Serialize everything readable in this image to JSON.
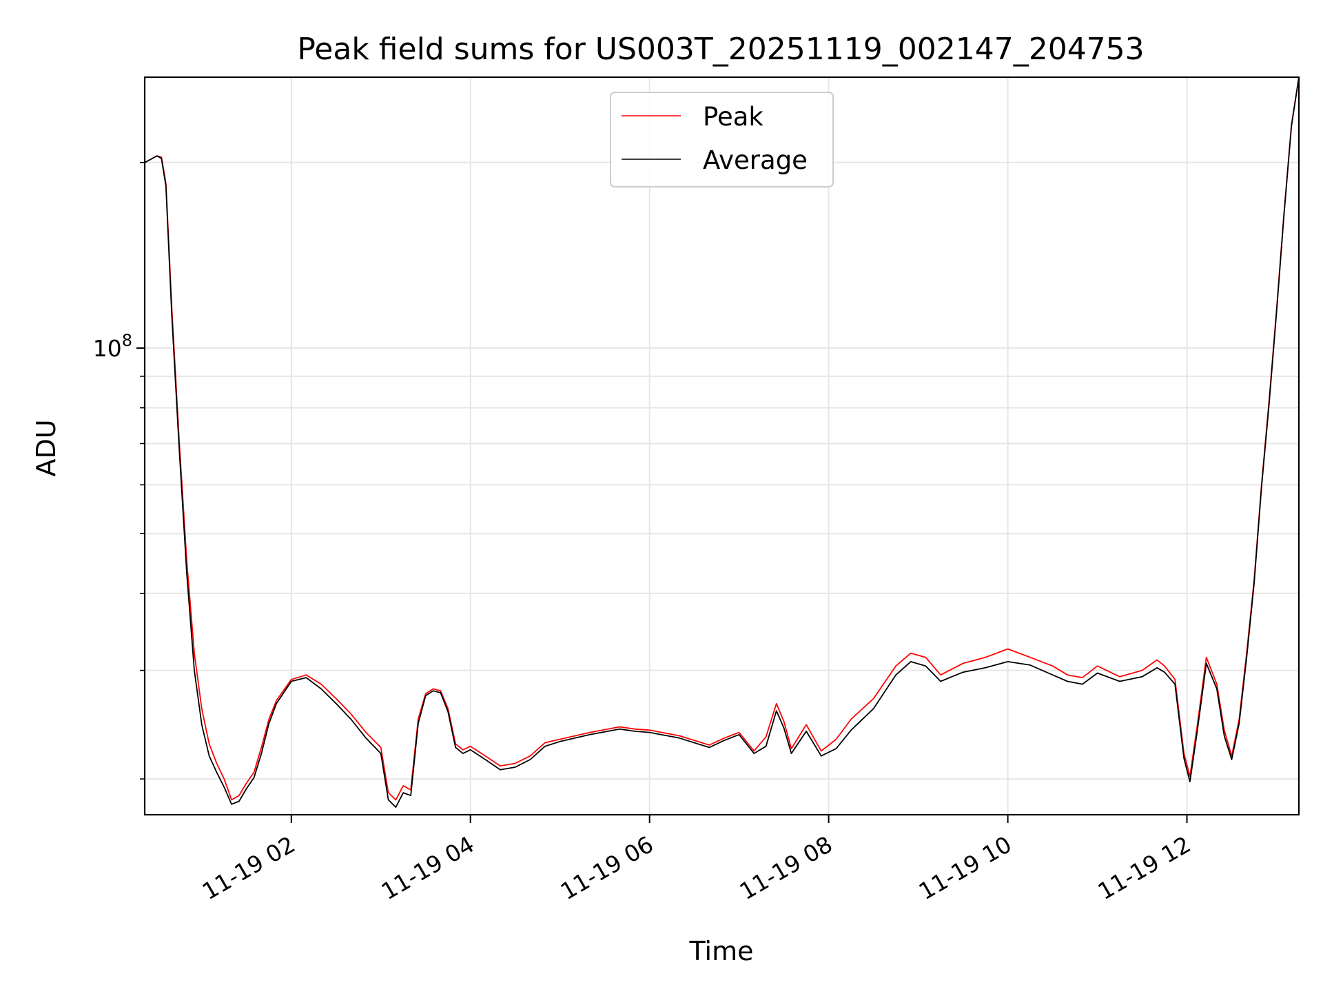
{
  "chart_data": {
    "type": "line",
    "title": "Peak field sums for US003T_20251119_002147_204753",
    "xlabel": "Time",
    "ylabel": "ADU",
    "yscale": "log",
    "grid": true,
    "legend_position": "upper center",
    "xlim": [
      "2025-11-19 00:21:47",
      "2025-11-19 13:15:00"
    ],
    "ylim": [
      17500000,
      275000000
    ],
    "x_tick_labels": [
      "11-19 02",
      "11-19 04",
      "11-19 06",
      "11-19 08",
      "11-19 10",
      "11-19 12"
    ],
    "x_tick_values": [
      "2025-11-19 02:00",
      "2025-11-19 04:00",
      "2025-11-19 06:00",
      "2025-11-19 08:00",
      "2025-11-19 10:00",
      "2025-11-19 12:00"
    ],
    "y_tick_labels": [
      {
        "base": "10",
        "exp": "8",
        "value": 100000000
      }
    ],
    "colors": {
      "Peak": "#ff0000",
      "Average": "#000000"
    },
    "x": [
      "2025-11-19 00:22",
      "2025-11-19 00:30",
      "2025-11-19 00:33",
      "2025-11-19 00:36",
      "2025-11-19 00:40",
      "2025-11-19 00:45",
      "2025-11-19 00:50",
      "2025-11-19 00:55",
      "2025-11-19 01:00",
      "2025-11-19 01:05",
      "2025-11-19 01:10",
      "2025-11-19 01:15",
      "2025-11-19 01:20",
      "2025-11-19 01:25",
      "2025-11-19 01:30",
      "2025-11-19 01:35",
      "2025-11-19 01:40",
      "2025-11-19 01:45",
      "2025-11-19 01:50",
      "2025-11-19 02:00",
      "2025-11-19 02:10",
      "2025-11-19 02:20",
      "2025-11-19 02:30",
      "2025-11-19 02:40",
      "2025-11-19 02:50",
      "2025-11-19 03:00",
      "2025-11-19 03:05",
      "2025-11-19 03:10",
      "2025-11-19 03:15",
      "2025-11-19 03:20",
      "2025-11-19 03:25",
      "2025-11-19 03:30",
      "2025-11-19 03:35",
      "2025-11-19 03:40",
      "2025-11-19 03:45",
      "2025-11-19 03:50",
      "2025-11-19 03:55",
      "2025-11-19 04:00",
      "2025-11-19 04:10",
      "2025-11-19 04:20",
      "2025-11-19 04:30",
      "2025-11-19 04:40",
      "2025-11-19 04:50",
      "2025-11-19 05:00",
      "2025-11-19 05:20",
      "2025-11-19 05:40",
      "2025-11-19 05:50",
      "2025-11-19 06:00",
      "2025-11-19 06:20",
      "2025-11-19 06:40",
      "2025-11-19 06:50",
      "2025-11-19 07:00",
      "2025-11-19 07:10",
      "2025-11-19 07:18",
      "2025-11-19 07:25",
      "2025-11-19 07:30",
      "2025-11-19 07:35",
      "2025-11-19 07:45",
      "2025-11-19 07:55",
      "2025-11-19 08:05",
      "2025-11-19 08:15",
      "2025-11-19 08:30",
      "2025-11-19 08:45",
      "2025-11-19 08:55",
      "2025-11-19 09:05",
      "2025-11-19 09:15",
      "2025-11-19 09:30",
      "2025-11-19 09:45",
      "2025-11-19 10:00",
      "2025-11-19 10:15",
      "2025-11-19 10:30",
      "2025-11-19 10:40",
      "2025-11-19 10:50",
      "2025-11-19 11:00",
      "2025-11-19 11:15",
      "2025-11-19 11:30",
      "2025-11-19 11:40",
      "2025-11-19 11:45",
      "2025-11-19 11:52",
      "2025-11-19 11:58",
      "2025-11-19 12:02",
      "2025-11-19 12:07",
      "2025-11-19 12:13",
      "2025-11-19 12:20",
      "2025-11-19 12:25",
      "2025-11-19 12:30",
      "2025-11-19 12:35",
      "2025-11-19 12:40",
      "2025-11-19 12:45",
      "2025-11-19 12:50",
      "2025-11-19 12:55",
      "2025-11-19 13:00",
      "2025-11-19 13:05",
      "2025-11-19 13:10",
      "2025-11-19 13:15"
    ],
    "series": [
      {
        "name": "Peak",
        "values": [
          200000000,
          205000000,
          204000000,
          185000000,
          115000000,
          70000000,
          45000000,
          32000000,
          26000000,
          22800000,
          21200000,
          20000000,
          18500000,
          18800000,
          19700000,
          20500000,
          22500000,
          25000000,
          26800000,
          29000000,
          29500000,
          28500000,
          27000000,
          25500000,
          23800000,
          22500000,
          19000000,
          18500000,
          19500000,
          19200000,
          25000000,
          27500000,
          28000000,
          27800000,
          26000000,
          22800000,
          22300000,
          22600000,
          21800000,
          21000000,
          21200000,
          21800000,
          22900000,
          23200000,
          23800000,
          24300000,
          24100000,
          24000000,
          23500000,
          22700000,
          23300000,
          23800000,
          22200000,
          23400000,
          26500000,
          24800000,
          22400000,
          24500000,
          22200000,
          23200000,
          25000000,
          27000000,
          30500000,
          32000000,
          31500000,
          29500000,
          30800000,
          31500000,
          32500000,
          31500000,
          30500000,
          29500000,
          29200000,
          30500000,
          29300000,
          30000000,
          31200000,
          30500000,
          29000000,
          22000000,
          20200000,
          24500000,
          31500000,
          28500000,
          24000000,
          21800000,
          25000000,
          32000000,
          42000000,
          60000000,
          82000000,
          115000000,
          165000000,
          230000000,
          275000000
        ]
      },
      {
        "name": "Average",
        "values": [
          200000000,
          205000000,
          203000000,
          183000000,
          112000000,
          68000000,
          43000000,
          30000000,
          24500000,
          21800000,
          20500000,
          19400000,
          18200000,
          18400000,
          19300000,
          20100000,
          22000000,
          24600000,
          26500000,
          28800000,
          29200000,
          28000000,
          26500000,
          25000000,
          23300000,
          22000000,
          18500000,
          18000000,
          19000000,
          18800000,
          24600000,
          27300000,
          27800000,
          27600000,
          25700000,
          22500000,
          22000000,
          22300000,
          21500000,
          20700000,
          20900000,
          21500000,
          22600000,
          23000000,
          23600000,
          24100000,
          23900000,
          23800000,
          23300000,
          22500000,
          23100000,
          23600000,
          22000000,
          22600000,
          25800000,
          24200000,
          22000000,
          23900000,
          21800000,
          22400000,
          24000000,
          26000000,
          29500000,
          31000000,
          30500000,
          28800000,
          29800000,
          30300000,
          31000000,
          30600000,
          29500000,
          28800000,
          28500000,
          29700000,
          28800000,
          29300000,
          30300000,
          29800000,
          28500000,
          21600000,
          19800000,
          24000000,
          30800000,
          28000000,
          23500000,
          21500000,
          24600000,
          31500000,
          41500000,
          59500000,
          81000000,
          114000000,
          164000000,
          229000000,
          275000000
        ]
      }
    ]
  }
}
